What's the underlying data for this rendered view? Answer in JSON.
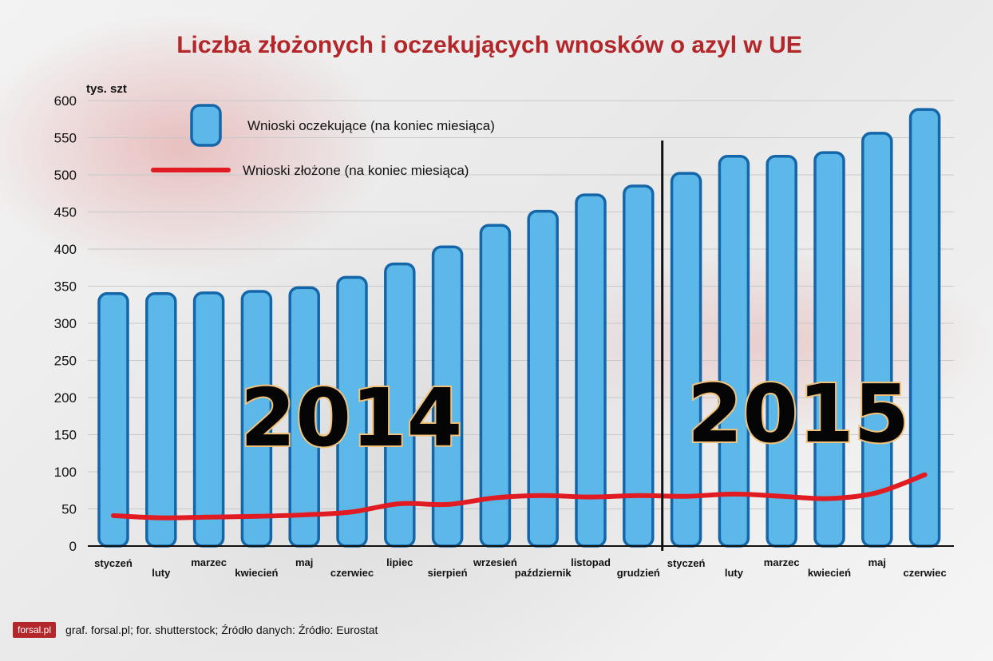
{
  "chart_data": {
    "type": "bar",
    "title": "Liczba złożonych i oczekujących wnosków o azyl w UE",
    "ylabel": "tys. szt",
    "ylim": [
      0,
      600
    ],
    "yticks": [
      0,
      50,
      100,
      150,
      200,
      250,
      300,
      350,
      400,
      450,
      500,
      550,
      600
    ],
    "categories": [
      "styczeń",
      "luty",
      "marzec",
      "kwiecień",
      "maj",
      "czerwiec",
      "lipiec",
      "sierpień",
      "wrzesień",
      "październik",
      "listopad",
      "grudzień",
      "styczeń",
      "luty",
      "marzec",
      "kwiecień",
      "maj",
      "czerwiec"
    ],
    "grid": true,
    "legend_position": "top-left",
    "series": [
      {
        "name": "Wnioski oczekujące (na koniec miesiąca)",
        "kind": "bar",
        "color": "#5bb8e8",
        "values": [
          340,
          340,
          341,
          343,
          348,
          362,
          380,
          403,
          432,
          451,
          473,
          485,
          502,
          525,
          525,
          530,
          556,
          588
        ]
      },
      {
        "name": "Wnioski złożone (na koniec miesiąca)",
        "kind": "line",
        "color": "#e01b22",
        "values": [
          41,
          38,
          39,
          40,
          42,
          46,
          57,
          56,
          65,
          68,
          66,
          68,
          67,
          70,
          67,
          64,
          72,
          96
        ]
      }
    ],
    "annotations": [
      "2014",
      "2015"
    ]
  },
  "footer": {
    "logo": "forsal.pl",
    "credits": "graf. forsal.pl; for. shutterstock;  Źródło danych:  Źródło: Eurostat"
  }
}
